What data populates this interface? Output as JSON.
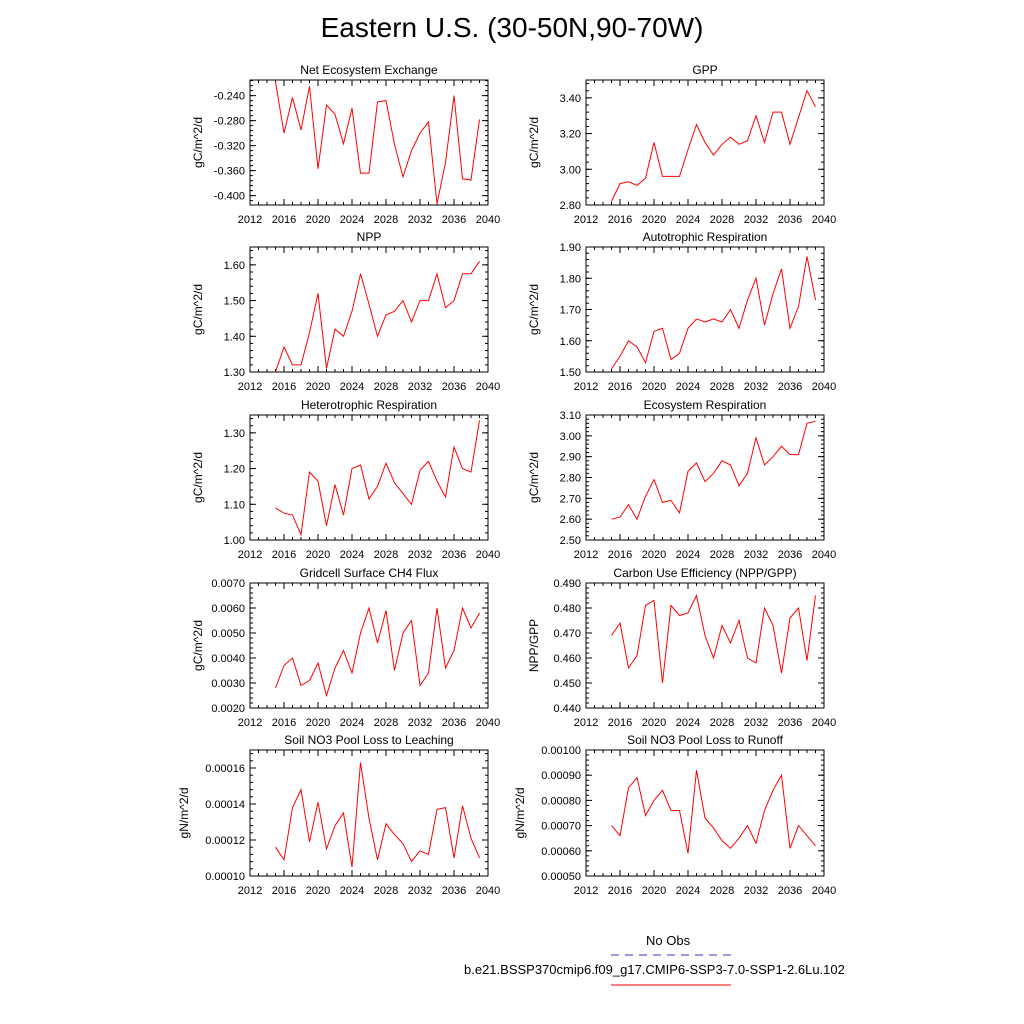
{
  "title": "Eastern U.S. (30-50N,90-70W)",
  "legend": {
    "entries": [
      {
        "label": "No Obs",
        "color": "#3333cc",
        "dash": true
      },
      {
        "label": "b.e21.BSSP370cmip6.f09_g17.CMIP6-SSP3-7.0-SSP1-2.6Lu.102",
        "color": "#ff0000",
        "dash": false
      }
    ]
  },
  "colors": {
    "line": "#ff0000",
    "axis": "#000000"
  },
  "chart_data": [
    {
      "type": "line",
      "title": "Net Ecosystem Exchange",
      "ylabel": "gC/m^2/d",
      "xlim": [
        2012,
        2040
      ],
      "xticks": [
        "2012",
        "2016",
        "2020",
        "2024",
        "2028",
        "2032",
        "2036",
        "2040"
      ],
      "ylim": [
        -0.415,
        -0.215
      ],
      "yticks": [
        "-0.240",
        "-0.280",
        "-0.320",
        "-0.360",
        "-0.400"
      ],
      "x": [
        2015,
        2016,
        2017,
        2018,
        2019,
        2020,
        2021,
        2022,
        2023,
        2024,
        2025,
        2026,
        2027,
        2028,
        2029,
        2030,
        2031,
        2032,
        2033,
        2034,
        2035,
        2036,
        2037,
        2038,
        2039
      ],
      "values": [
        -0.218,
        -0.3,
        -0.243,
        -0.295,
        -0.225,
        -0.357,
        -0.255,
        -0.27,
        -0.317,
        -0.26,
        -0.364,
        -0.364,
        -0.25,
        -0.248,
        -0.318,
        -0.37,
        -0.328,
        -0.3,
        -0.282,
        -0.413,
        -0.347,
        -0.24,
        -0.373,
        -0.375,
        -0.278
      ]
    },
    {
      "type": "line",
      "title": "GPP",
      "ylabel": "gC/m^2/d",
      "xlim": [
        2012,
        2040
      ],
      "xticks": [
        "2012",
        "2016",
        "2020",
        "2024",
        "2028",
        "2032",
        "2036",
        "2040"
      ],
      "ylim": [
        2.8,
        3.5
      ],
      "yticks": [
        "3.40",
        "3.20",
        "3.00",
        "2.80"
      ],
      "x": [
        2015,
        2016,
        2017,
        2018,
        2019,
        2020,
        2021,
        2022,
        2023,
        2024,
        2025,
        2026,
        2027,
        2028,
        2029,
        2030,
        2031,
        2032,
        2033,
        2034,
        2035,
        2036,
        2037,
        2038,
        2039
      ],
      "values": [
        2.82,
        2.92,
        2.93,
        2.91,
        2.95,
        3.15,
        2.96,
        2.96,
        2.96,
        3.11,
        3.25,
        3.15,
        3.08,
        3.14,
        3.18,
        3.14,
        3.16,
        3.3,
        3.15,
        3.32,
        3.32,
        3.14,
        3.29,
        3.44,
        3.35
      ]
    },
    {
      "type": "line",
      "title": "NPP",
      "ylabel": "gC/m^2/d",
      "xlim": [
        2012,
        2040
      ],
      "xticks": [
        "2012",
        "2016",
        "2020",
        "2024",
        "2028",
        "2032",
        "2036",
        "2040"
      ],
      "ylim": [
        1.3,
        1.65
      ],
      "yticks": [
        "1.60",
        "1.50",
        "1.40",
        "1.30"
      ],
      "x": [
        2015,
        2016,
        2017,
        2018,
        2019,
        2020,
        2021,
        2022,
        2023,
        2024,
        2025,
        2026,
        2027,
        2028,
        2029,
        2030,
        2031,
        2032,
        2033,
        2034,
        2035,
        2036,
        2037,
        2038,
        2039
      ],
      "values": [
        1.3,
        1.37,
        1.32,
        1.32,
        1.41,
        1.52,
        1.31,
        1.42,
        1.4,
        1.47,
        1.575,
        1.49,
        1.4,
        1.46,
        1.47,
        1.5,
        1.44,
        1.5,
        1.5,
        1.575,
        1.48,
        1.5,
        1.575,
        1.575,
        1.61
      ]
    },
    {
      "type": "line",
      "title": "Autotrophic Respiration",
      "ylabel": "gC/m^2/d",
      "xlim": [
        2012,
        2040
      ],
      "xticks": [
        "2012",
        "2016",
        "2020",
        "2024",
        "2028",
        "2032",
        "2036",
        "2040"
      ],
      "ylim": [
        1.5,
        1.9
      ],
      "yticks": [
        "1.90",
        "1.80",
        "1.70",
        "1.60",
        "1.50"
      ],
      "x": [
        2015,
        2016,
        2017,
        2018,
        2019,
        2020,
        2021,
        2022,
        2023,
        2024,
        2025,
        2026,
        2027,
        2028,
        2029,
        2030,
        2031,
        2032,
        2033,
        2034,
        2035,
        2036,
        2037,
        2038,
        2039
      ],
      "values": [
        1.51,
        1.55,
        1.6,
        1.58,
        1.53,
        1.63,
        1.64,
        1.54,
        1.56,
        1.64,
        1.67,
        1.66,
        1.67,
        1.66,
        1.7,
        1.64,
        1.73,
        1.8,
        1.65,
        1.75,
        1.83,
        1.64,
        1.71,
        1.87,
        1.73
      ]
    },
    {
      "type": "line",
      "title": "Heterotrophic Respiration",
      "ylabel": "gC/m^2/d",
      "xlim": [
        2012,
        2040
      ],
      "xticks": [
        "2012",
        "2016",
        "2020",
        "2024",
        "2028",
        "2032",
        "2036",
        "2040"
      ],
      "ylim": [
        1.0,
        1.35
      ],
      "yticks": [
        "1.30",
        "1.20",
        "1.10",
        "1.00"
      ],
      "x": [
        2015,
        2016,
        2017,
        2018,
        2019,
        2020,
        2021,
        2022,
        2023,
        2024,
        2025,
        2026,
        2027,
        2028,
        2029,
        2030,
        2031,
        2032,
        2033,
        2034,
        2035,
        2036,
        2037,
        2038,
        2039
      ],
      "values": [
        1.09,
        1.075,
        1.07,
        1.015,
        1.19,
        1.165,
        1.04,
        1.155,
        1.07,
        1.2,
        1.21,
        1.115,
        1.15,
        1.215,
        1.16,
        1.13,
        1.1,
        1.195,
        1.22,
        1.165,
        1.12,
        1.26,
        1.2,
        1.19,
        1.335
      ]
    },
    {
      "type": "line",
      "title": "Ecosystem Respiration",
      "ylabel": "gC/m^2/d",
      "xlim": [
        2012,
        2040
      ],
      "xticks": [
        "2012",
        "2016",
        "2020",
        "2024",
        "2028",
        "2032",
        "2036",
        "2040"
      ],
      "ylim": [
        2.5,
        3.1
      ],
      "yticks": [
        "3.10",
        "3.00",
        "2.90",
        "2.80",
        "2.70",
        "2.60",
        "2.50"
      ],
      "x": [
        2015,
        2016,
        2017,
        2018,
        2019,
        2020,
        2021,
        2022,
        2023,
        2024,
        2025,
        2026,
        2027,
        2028,
        2029,
        2030,
        2031,
        2032,
        2033,
        2034,
        2035,
        2036,
        2037,
        2038,
        2039
      ],
      "values": [
        2.6,
        2.61,
        2.67,
        2.6,
        2.71,
        2.79,
        2.68,
        2.69,
        2.63,
        2.83,
        2.87,
        2.78,
        2.82,
        2.88,
        2.86,
        2.76,
        2.82,
        2.99,
        2.86,
        2.9,
        2.95,
        2.91,
        2.91,
        3.06,
        3.07
      ]
    },
    {
      "type": "line",
      "title": "Gridcell Surface CH4 Flux",
      "ylabel": "gC/m^2/d",
      "xlim": [
        2012,
        2040
      ],
      "xticks": [
        "2012",
        "2016",
        "2020",
        "2024",
        "2028",
        "2032",
        "2036",
        "2040"
      ],
      "ylim": [
        0.002,
        0.007
      ],
      "yticks": [
        "0.0070",
        "0.0060",
        "0.0050",
        "0.0040",
        "0.0030",
        "0.0020"
      ],
      "x": [
        2015,
        2016,
        2017,
        2018,
        2019,
        2020,
        2021,
        2022,
        2023,
        2024,
        2025,
        2026,
        2027,
        2028,
        2029,
        2030,
        2031,
        2032,
        2033,
        2034,
        2035,
        2036,
        2037,
        2038,
        2039
      ],
      "values": [
        0.0028,
        0.0037,
        0.004,
        0.0029,
        0.0031,
        0.0038,
        0.0025,
        0.0036,
        0.0043,
        0.0034,
        0.005,
        0.006,
        0.0046,
        0.0059,
        0.0035,
        0.005,
        0.0055,
        0.0029,
        0.0034,
        0.006,
        0.0036,
        0.0043,
        0.006,
        0.0052,
        0.0058
      ]
    },
    {
      "type": "line",
      "title": "Carbon Use Efficiency (NPP/GPP)",
      "ylabel": "NPP/GPP",
      "xlim": [
        2012,
        2040
      ],
      "xticks": [
        "2012",
        "2016",
        "2020",
        "2024",
        "2028",
        "2032",
        "2036",
        "2040"
      ],
      "ylim": [
        0.44,
        0.49
      ],
      "yticks": [
        "0.490",
        "0.480",
        "0.470",
        "0.460",
        "0.450",
        "0.440"
      ],
      "x": [
        2015,
        2016,
        2017,
        2018,
        2019,
        2020,
        2021,
        2022,
        2023,
        2024,
        2025,
        2026,
        2027,
        2028,
        2029,
        2030,
        2031,
        2032,
        2033,
        2034,
        2035,
        2036,
        2037,
        2038,
        2039
      ],
      "values": [
        0.469,
        0.474,
        0.456,
        0.461,
        0.481,
        0.483,
        0.45,
        0.481,
        0.477,
        0.478,
        0.485,
        0.469,
        0.46,
        0.473,
        0.466,
        0.475,
        0.46,
        0.458,
        0.48,
        0.473,
        0.454,
        0.476,
        0.48,
        0.459,
        0.485
      ]
    },
    {
      "type": "line",
      "title": "Soil NO3 Pool Loss to Leaching",
      "ylabel": "gN/m^2/d",
      "xlim": [
        2012,
        2040
      ],
      "xticks": [
        "2012",
        "2016",
        "2020",
        "2024",
        "2028",
        "2032",
        "2036",
        "2040"
      ],
      "ylim": [
        0.0001,
        0.00017
      ],
      "yticks": [
        "0.00016",
        "0.00014",
        "0.00012",
        "0.00010"
      ],
      "x": [
        2015,
        2016,
        2017,
        2018,
        2019,
        2020,
        2021,
        2022,
        2023,
        2024,
        2025,
        2026,
        2027,
        2028,
        2029,
        2030,
        2031,
        2032,
        2033,
        2034,
        2035,
        2036,
        2037,
        2038,
        2039
      ],
      "values": [
        0.000116,
        0.000109,
        0.000138,
        0.000148,
        0.000119,
        0.000141,
        0.000115,
        0.000128,
        0.000135,
        0.000105,
        0.000163,
        0.000132,
        0.000109,
        0.000129,
        0.000123,
        0.000118,
        0.000108,
        0.000114,
        0.000112,
        0.000137,
        0.000138,
        0.00011,
        0.000139,
        0.000121,
        0.00011
      ]
    },
    {
      "type": "line",
      "title": "Soil NO3 Pool Loss to Runoff",
      "ylabel": "gN/m^2/d",
      "xlim": [
        2012,
        2040
      ],
      "xticks": [
        "2012",
        "2016",
        "2020",
        "2024",
        "2028",
        "2032",
        "2036",
        "2040"
      ],
      "ylim": [
        0.0005,
        0.001
      ],
      "yticks": [
        "0.00100",
        "0.00090",
        "0.00080",
        "0.00070",
        "0.00060",
        "0.00050"
      ],
      "x": [
        2015,
        2016,
        2017,
        2018,
        2019,
        2020,
        2021,
        2022,
        2023,
        2024,
        2025,
        2026,
        2027,
        2028,
        2029,
        2030,
        2031,
        2032,
        2033,
        2034,
        2035,
        2036,
        2037,
        2038,
        2039
      ],
      "values": [
        0.0007,
        0.00066,
        0.00085,
        0.00089,
        0.00074,
        0.0008,
        0.00084,
        0.00076,
        0.00076,
        0.00059,
        0.00092,
        0.00073,
        0.00069,
        0.00064,
        0.00061,
        0.00065,
        0.0007,
        0.00063,
        0.00076,
        0.00084,
        0.0009,
        0.00061,
        0.0007,
        0.00066,
        0.00062
      ]
    }
  ]
}
